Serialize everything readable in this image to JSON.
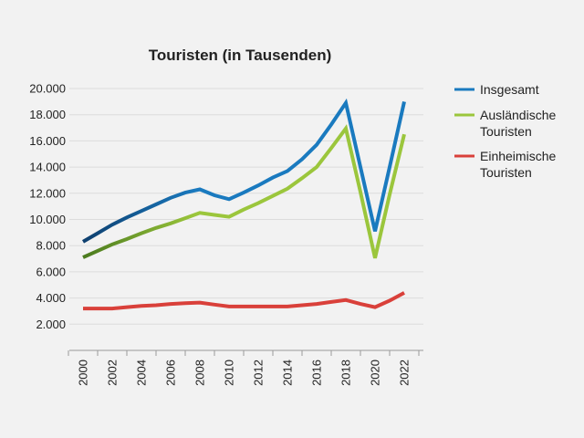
{
  "chart_data": {
    "type": "line",
    "title": "Touristen (in Tausenden)",
    "xlabel": "",
    "ylabel": "",
    "x": [
      2000,
      2001,
      2002,
      2003,
      2004,
      2005,
      2006,
      2007,
      2008,
      2009,
      2010,
      2011,
      2012,
      2013,
      2014,
      2015,
      2016,
      2017,
      2018,
      2019,
      2020,
      2021,
      2022
    ],
    "x_tick_labels": [
      "2000",
      "2002",
      "2004",
      "2006",
      "2008",
      "2010",
      "2012",
      "2014",
      "2016",
      "2018",
      "2020",
      "2022"
    ],
    "y_tick_labels": [
      "2.000",
      "4.000",
      "6.000",
      "8.000",
      "10.000",
      "12.000",
      "14.000",
      "16.000",
      "18.000",
      "20.000"
    ],
    "y_ticks": [
      2000,
      4000,
      6000,
      8000,
      10000,
      12000,
      14000,
      16000,
      18000,
      20000
    ],
    "ylim": [
      0,
      20000
    ],
    "grid": true,
    "legend_position": "right",
    "series": [
      {
        "name": "Insgesamt",
        "color": "#1a7abf",
        "color_start": "#0e3f6e",
        "values": [
          8300,
          8950,
          9600,
          10150,
          10650,
          11150,
          11650,
          12050,
          12300,
          11850,
          11550,
          12050,
          12600,
          13200,
          13700,
          14600,
          15700,
          17250,
          18900,
          14000,
          9100,
          14000,
          19000
        ]
      },
      {
        "name": "Ausländische Touristen",
        "color": "#9bc63c",
        "color_start": "#4a7a1e",
        "values": [
          7100,
          7600,
          8100,
          8500,
          8950,
          9350,
          9700,
          10100,
          10500,
          10350,
          10200,
          10750,
          11250,
          11800,
          12350,
          13150,
          14000,
          15450,
          16950,
          12100,
          7050,
          11900,
          16500
        ]
      },
      {
        "name": "Einheimische Touristen",
        "color": "#d9403a",
        "values": [
          3200,
          3200,
          3200,
          3300,
          3400,
          3450,
          3550,
          3600,
          3650,
          3500,
          3350,
          3350,
          3350,
          3350,
          3350,
          3450,
          3550,
          3700,
          3850,
          3550,
          3300,
          3800,
          4400
        ]
      }
    ]
  }
}
